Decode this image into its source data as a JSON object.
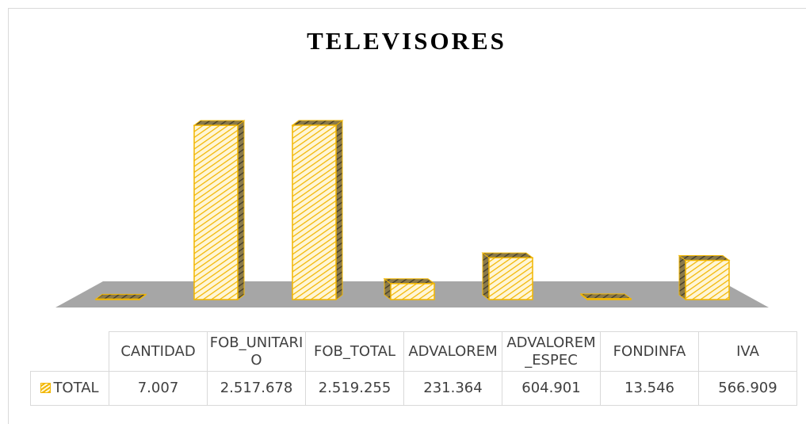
{
  "chart_data": {
    "type": "bar3d",
    "title": "TELEVISORES",
    "categories": [
      "CANTIDAD",
      "FOB_UNITARIO",
      "FOB_TOTAL",
      "ADVALOREM",
      "ADVALOREM_ESPEC",
      "FONDINFA",
      "IVA"
    ],
    "series": [
      {
        "name": "TOTAL",
        "color": "#f2b600",
        "values": [
          7007,
          2517678,
          2519255,
          231364,
          604901,
          13546,
          566909
        ],
        "value_labels": [
          "7.007",
          "2.517.678",
          "2.519.255",
          "231.364",
          "604.901",
          "13.546",
          "566.909"
        ]
      }
    ]
  }
}
